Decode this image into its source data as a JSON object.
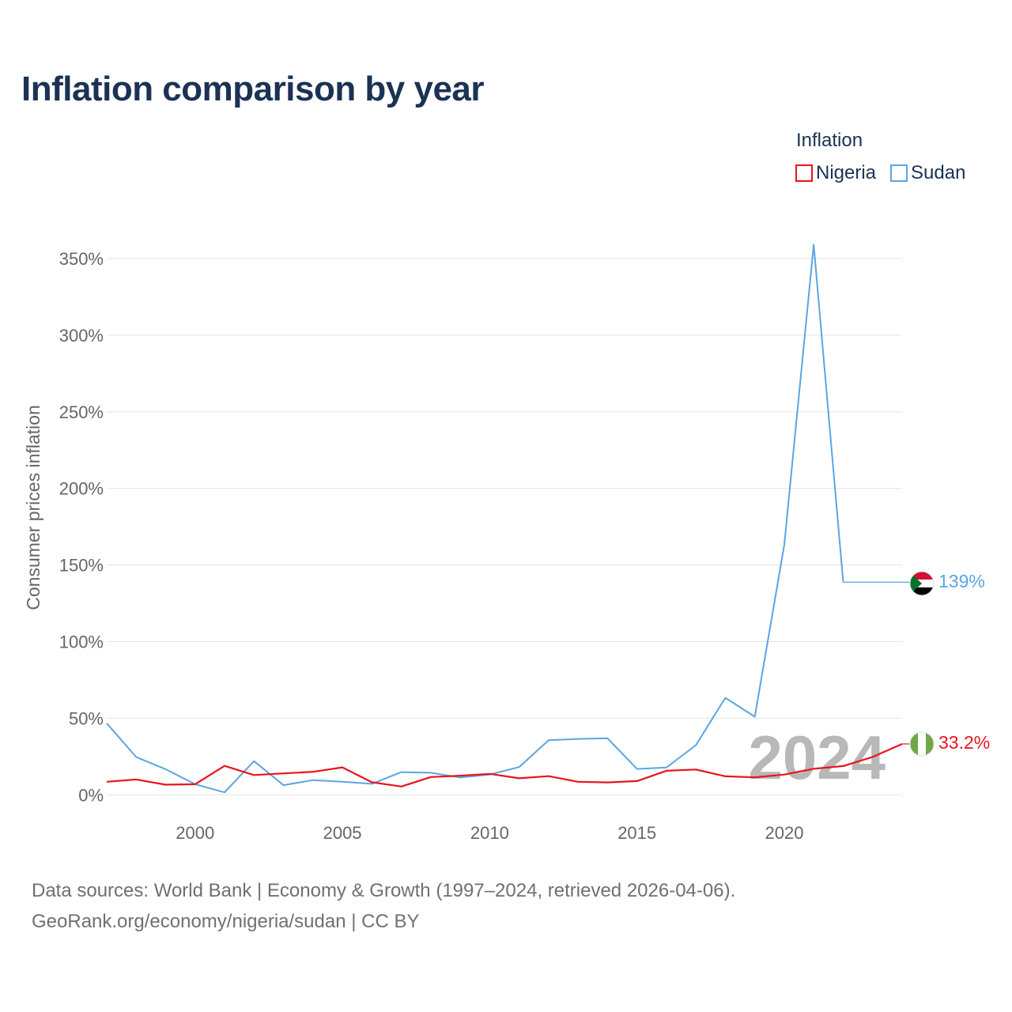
{
  "chart_data": {
    "type": "line",
    "title": "Inflation comparison by year",
    "ylabel": "Consumer prices inflation",
    "xlabel": "",
    "legend_title": "Inflation",
    "legend_position": "top-right",
    "xlim": [
      1997,
      2024
    ],
    "ylim": [
      -5,
      365
    ],
    "x_ticks": [
      2000,
      2005,
      2010,
      2015,
      2020
    ],
    "y_ticks": [
      0,
      50,
      100,
      150,
      200,
      250,
      300,
      350
    ],
    "y_tick_labels": [
      "0%",
      "50%",
      "100%",
      "150%",
      "200%",
      "250%",
      "300%",
      "350%"
    ],
    "x": [
      1997,
      1998,
      1999,
      2000,
      2001,
      2002,
      2003,
      2004,
      2005,
      2006,
      2007,
      2008,
      2009,
      2010,
      2011,
      2012,
      2013,
      2014,
      2015,
      2016,
      2017,
      2018,
      2019,
      2020,
      2021,
      2022,
      2023,
      2024
    ],
    "series": [
      {
        "name": "Sudan",
        "color": "#5aa5e4",
        "flag_icon": "sudan-flag-icon",
        "end_label": "139%",
        "values": [
          46.7,
          24.6,
          16.7,
          6.9,
          1.6,
          22.0,
          6.3,
          9.6,
          8.5,
          7.2,
          14.8,
          14.4,
          11.3,
          13.2,
          18.1,
          35.6,
          36.5,
          36.9,
          16.9,
          17.8,
          32.4,
          63.3,
          51.0,
          163.3,
          359.1,
          138.8,
          null,
          null
        ],
        "final_value": 138.8
      },
      {
        "name": "Nigeria",
        "color": "#e8141c",
        "flag_icon": "nigeria-flag-icon",
        "end_label": "33.2%",
        "values": [
          8.5,
          10.0,
          6.6,
          6.9,
          18.9,
          12.9,
          14.0,
          15.0,
          17.9,
          8.2,
          5.4,
          11.6,
          12.5,
          13.7,
          10.8,
          12.2,
          8.5,
          8.1,
          9.0,
          15.7,
          16.5,
          12.1,
          11.4,
          13.2,
          17.0,
          18.8,
          24.7,
          33.2
        ]
      }
    ],
    "watermark": "2024"
  },
  "footer": {
    "line1": "Data sources: World Bank | Economy & Growth (1997–2024, retrieved 2026-04-06).",
    "line2": "GeoRank.org/economy/nigeria/sudan | CC BY"
  }
}
